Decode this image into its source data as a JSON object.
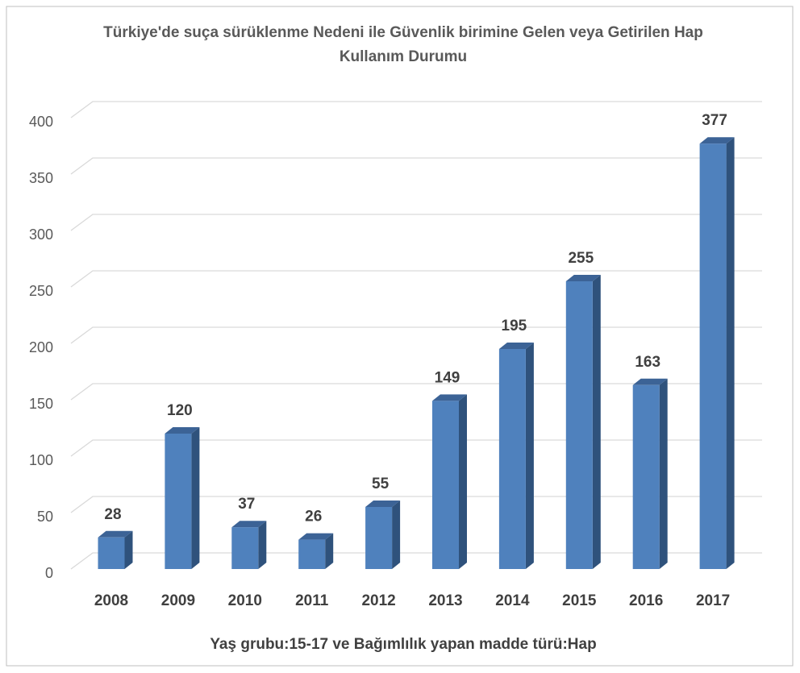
{
  "chart_data": {
    "type": "bar",
    "title": "Türkiye'de suça sürüklenme Nedeni ile Güvenlik birimine Gelen veya Getirilen Hap Kullanım Durumu",
    "x_label": "Yaş grubu:15-17 ve Bağımlılık yapan madde türü:Hap",
    "categories": [
      "2008",
      "2009",
      "2010",
      "2011",
      "2012",
      "2013",
      "2014",
      "2015",
      "2016",
      "2017"
    ],
    "values": [
      28,
      120,
      37,
      26,
      55,
      149,
      195,
      255,
      163,
      377
    ],
    "color": "#4f81bd",
    "ylim": [
      0,
      400
    ],
    "yticks": [
      0,
      50,
      100,
      150,
      200,
      250,
      300,
      350,
      400
    ],
    "grid": true
  }
}
